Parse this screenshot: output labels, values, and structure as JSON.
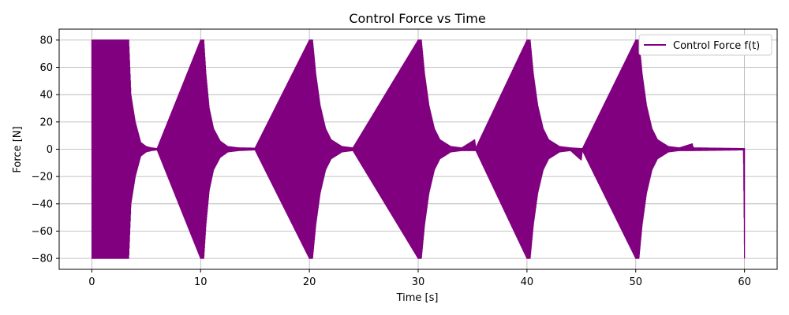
{
  "chart_data": {
    "type": "line",
    "title": "Control Force vs Time",
    "xlabel": "Time [s]",
    "ylabel": "Force [N]",
    "xlim": [
      -3,
      63
    ],
    "ylim": [
      -88,
      88
    ],
    "xticks": [
      0,
      10,
      20,
      30,
      40,
      50,
      60
    ],
    "yticks": [
      -80,
      -60,
      -40,
      -20,
      0,
      20,
      40,
      60,
      80
    ],
    "grid": true,
    "legend_position": "top-right",
    "series": [
      {
        "name": "Control Force f(t)",
        "color": "#800080",
        "envelope": {
          "description_values": "upper/lower bounds of the oscillating signal",
          "t": [
            0,
            3.4,
            3.6,
            4.0,
            4.5,
            5.0,
            5.5,
            6.0,
            10.0,
            10.3,
            10.5,
            10.8,
            11.2,
            11.8,
            12.5,
            13.5,
            15.0,
            20.0,
            20.3,
            20.6,
            21.0,
            21.5,
            22.0,
            23.0,
            24.0,
            30.0,
            30.3,
            30.6,
            31.0,
            31.5,
            32.0,
            33.0,
            34.0,
            35.2,
            35.3,
            40.0,
            40.3,
            40.6,
            41.0,
            41.5,
            42.0,
            43.0,
            44.0,
            45.0,
            45.1,
            50.0,
            50.3,
            50.6,
            51.0,
            51.5,
            52.0,
            53.0,
            54.0,
            55.2,
            55.3,
            59.9,
            60.0
          ],
          "upper": [
            80,
            80,
            40,
            20,
            5,
            2,
            1,
            0.5,
            80,
            80,
            55,
            30,
            15,
            6,
            2,
            1,
            0.8,
            80,
            80,
            55,
            32,
            15,
            7,
            2,
            1,
            80,
            80,
            55,
            32,
            15,
            7,
            2,
            1,
            7,
            1,
            80,
            80,
            55,
            32,
            15,
            7,
            2,
            1,
            0.5,
            0.5,
            80,
            80,
            55,
            32,
            15,
            7,
            2,
            1,
            4,
            1,
            0.5,
            0.5
          ],
          "lower": [
            -80,
            -80,
            -40,
            -20,
            -5,
            -2,
            -1,
            -0.5,
            -80,
            -80,
            -55,
            -30,
            -15,
            -6,
            -2,
            -1,
            -0.5,
            -80,
            -80,
            -55,
            -32,
            -15,
            -7,
            -2,
            -1,
            -80,
            -80,
            -55,
            -32,
            -15,
            -7,
            -2,
            -1,
            -1,
            -1,
            -80,
            -80,
            -55,
            -32,
            -15,
            -7,
            -2,
            -1,
            -8,
            -1,
            -80,
            -80,
            -55,
            -32,
            -15,
            -7,
            -2,
            -1,
            -1,
            -1,
            -0.5,
            -80
          ]
        }
      }
    ]
  }
}
